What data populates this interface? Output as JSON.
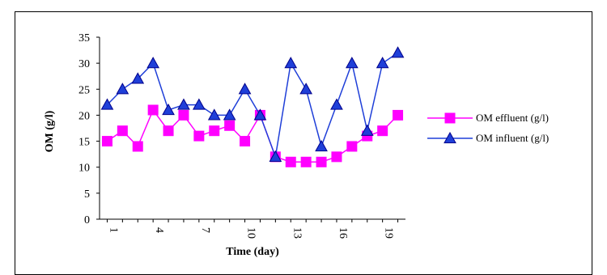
{
  "chart_data": {
    "type": "line",
    "title": "",
    "xlabel": "Time (day)",
    "ylabel": "OM (g/l)",
    "x": [
      1,
      2,
      3,
      4,
      5,
      6,
      7,
      8,
      9,
      10,
      11,
      12,
      13,
      14,
      15,
      16,
      17,
      18,
      19,
      20
    ],
    "xticks": [
      1,
      4,
      7,
      10,
      13,
      16,
      19
    ],
    "ylim": [
      0,
      35
    ],
    "yticks": [
      0,
      5,
      10,
      15,
      20,
      25,
      30,
      35
    ],
    "grid": false,
    "legend_position": "right",
    "series": [
      {
        "name": "OM effluent (g/l)",
        "color": "#ff00ff",
        "marker": "square",
        "values": [
          15,
          17,
          14,
          21,
          17,
          20,
          16,
          17,
          18,
          15,
          20,
          12,
          11,
          11,
          11,
          12,
          14,
          16,
          17,
          20
        ]
      },
      {
        "name": "OM influent (g/l)",
        "color": "#1f3fd8",
        "marker": "triangle",
        "values": [
          22,
          25,
          27,
          30,
          21,
          22,
          22,
          20,
          20,
          25,
          20,
          12,
          30,
          25,
          14,
          22,
          30,
          17,
          30,
          32
        ]
      }
    ]
  }
}
